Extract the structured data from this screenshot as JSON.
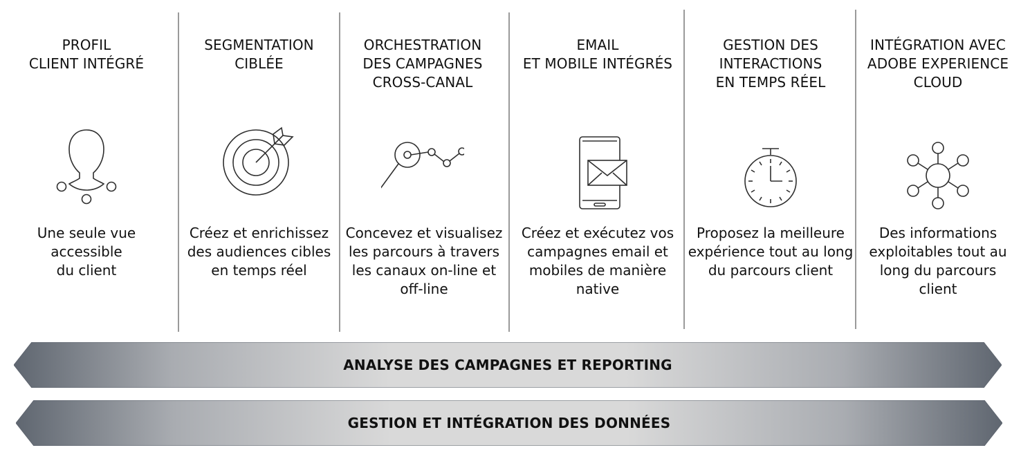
{
  "columns": [
    {
      "title": "PROFIL\nCLIENT INTÉGRÉ",
      "icon": "person-profile-icon",
      "description": "Une seule vue accessible\ndu client"
    },
    {
      "title": "SEGMENTATION\nCIBLÉE",
      "icon": "target-dart-icon",
      "description": "Créez et enrichissez\ndes audiences cibles\nen temps réel"
    },
    {
      "title": "ORCHESTRATION\nDES CAMPAGNES\nCROSS-CANAL",
      "icon": "journey-path-icon",
      "description": "Concevez et visualisez\nles parcours à travers\nles canaux on-line et\noff-line"
    },
    {
      "title": "EMAIL\nET MOBILE INTÉGRÉS",
      "icon": "mobile-email-icon",
      "description": "Créez et exécutez vos\ncampagnes email et\nmobiles de manière\nnative"
    },
    {
      "title": "GESTION DES\nINTERACTIONS\nEN TEMPS RÉEL",
      "icon": "stopwatch-icon",
      "description": "Proposez la meilleure\nexpérience tout au long\ndu parcours client"
    },
    {
      "title": "INTÉGRATION AVEC\nADOBE EXPERIENCE\nCLOUD",
      "icon": "network-hub-icon",
      "description": "Des informations\nexploitables tout au\nlong du parcours\nclient"
    }
  ],
  "bands": [
    {
      "label": "ANALYSE DES CAMPAGNES ET REPORTING"
    },
    {
      "label": "GESTION ET INTÉGRATION DES DONNÉES"
    }
  ],
  "colors": {
    "band_dark": "#5f6670",
    "band_light": "#dadada",
    "divider": "#9a9a9a",
    "icon_stroke": "#2e2e2e"
  }
}
